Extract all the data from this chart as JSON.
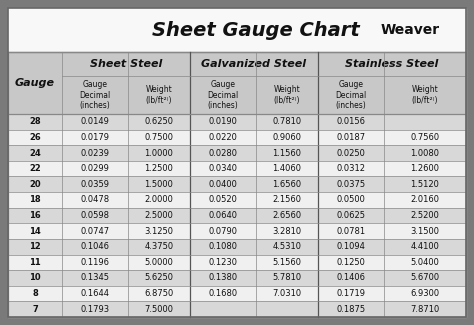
{
  "title": "Sheet Gauge Chart",
  "bg_outer": "#7a7a7a",
  "bg_white": "#ffffff",
  "bg_gray_row": "#d8d8d8",
  "bg_white_row": "#f0f0f0",
  "header_section_bg": "#c8c8c8",
  "gauges": [
    28,
    26,
    24,
    22,
    20,
    18,
    16,
    14,
    12,
    11,
    10,
    8,
    7
  ],
  "sheet_steel_dec": [
    "0.0149",
    "0.0179",
    "0.0239",
    "0.0299",
    "0.0359",
    "0.0478",
    "0.0598",
    "0.0747",
    "0.1046",
    "0.1196",
    "0.1345",
    "0.1644",
    "0.1793"
  ],
  "sheet_steel_wt": [
    "0.6250",
    "0.7500",
    "1.0000",
    "1.2500",
    "1.5000",
    "2.0000",
    "2.5000",
    "3.1250",
    "4.3750",
    "5.0000",
    "5.6250",
    "6.8750",
    "7.5000"
  ],
  "galv_dec": [
    "0.0190",
    "0.0220",
    "0.0280",
    "0.0340",
    "0.0400",
    "0.0520",
    "0.0640",
    "0.0790",
    "0.1080",
    "0.1230",
    "0.1380",
    "0.1680",
    ""
  ],
  "galv_wt": [
    "0.7810",
    "0.9060",
    "1.1560",
    "1.4060",
    "1.6560",
    "2.1560",
    "2.6560",
    "3.2810",
    "4.5310",
    "5.1560",
    "5.7810",
    "7.0310",
    ""
  ],
  "stain_dec": [
    "0.0156",
    "0.0187",
    "0.0250",
    "0.0312",
    "0.0375",
    "0.0500",
    "0.0625",
    "0.0781",
    "0.1094",
    "0.1250",
    "0.1406",
    "0.1719",
    "0.1875"
  ],
  "stain_wt": [
    "",
    "0.7560",
    "1.0080",
    "1.2600",
    "1.5120",
    "2.0160",
    "2.5200",
    "3.1500",
    "4.4100",
    "5.0400",
    "5.6700",
    "6.9300",
    "7.8710"
  ]
}
